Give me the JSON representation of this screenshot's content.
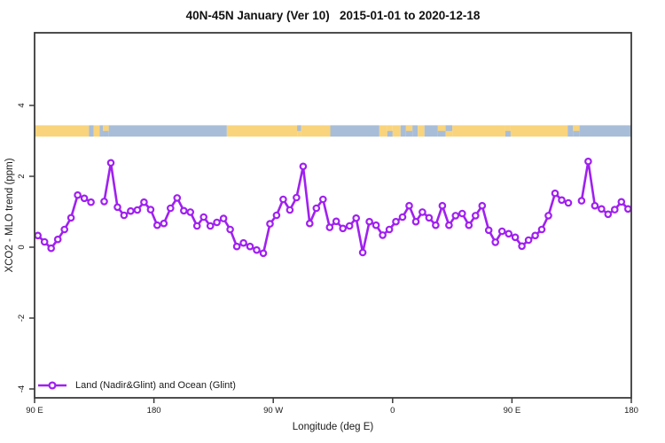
{
  "chart_data": {
    "type": "line",
    "title": "40N-45N January (Ver 10)   2015-01-01 to 2020-12-18",
    "xlabel": "Longitude (deg E)",
    "ylabel": "XCO2 - MLO trend (ppm)",
    "axes": {
      "xlim": [
        90,
        540
      ],
      "ylim": [
        -4.25,
        6.05
      ],
      "grid": false,
      "x_ticks": [
        {
          "value": 90,
          "label": "90 E"
        },
        {
          "value": 180,
          "label": "180"
        },
        {
          "value": 270,
          "label": "90 W"
        },
        {
          "value": 360,
          "label": "0"
        },
        {
          "value": 450,
          "label": "90 E"
        },
        {
          "value": 540,
          "label": "180"
        }
      ],
      "y_ticks": [
        {
          "value": -4,
          "label": "-4"
        },
        {
          "value": -2,
          "label": "-2"
        },
        {
          "value": 0,
          "label": "0"
        },
        {
          "value": 2,
          "label": "2"
        },
        {
          "value": 4,
          "label": "4"
        }
      ]
    },
    "x_start": 92.5,
    "x_step": 5,
    "series": [
      {
        "name": "Land (Nadir&Glint) and Ocean (Glint)",
        "color": "#A020F0",
        "marker": "open-circle",
        "values": [
          0.33,
          0.15,
          -0.03,
          0.22,
          0.5,
          0.83,
          1.47,
          1.38,
          1.27,
          null,
          1.29,
          2.38,
          1.13,
          0.9,
          1.02,
          1.05,
          1.27,
          1.06,
          0.62,
          0.67,
          1.1,
          1.39,
          1.03,
          0.99,
          0.6,
          0.85,
          0.6,
          0.7,
          0.81,
          0.5,
          0.02,
          0.12,
          0.02,
          -0.08,
          -0.17,
          0.66,
          0.9,
          1.35,
          1.05,
          1.4,
          2.28,
          0.67,
          1.1,
          1.35,
          0.56,
          0.73,
          0.53,
          0.6,
          0.82,
          -0.15,
          0.72,
          0.62,
          0.34,
          0.5,
          0.72,
          0.85,
          1.17,
          0.72,
          0.99,
          0.83,
          0.62,
          1.17,
          0.62,
          0.89,
          0.95,
          0.62,
          0.89,
          1.17,
          0.48,
          0.14,
          0.45,
          0.38,
          0.28,
          0.03,
          0.2,
          0.33,
          0.5,
          0.89,
          1.52,
          1.33,
          1.25,
          null,
          1.31,
          2.42,
          1.17,
          1.08,
          0.93,
          1.06,
          1.28,
          1.08
        ]
      }
    ],
    "legend": {
      "position": "bottom-left",
      "entries": [
        {
          "label": "Land (Nadir&Glint) and Ocean (Glint)",
          "marker": "circle-line",
          "color": "#A020F0"
        }
      ]
    },
    "land_ocean_strip": {
      "description": "land/ocean mask band",
      "land_color": "#F9D47C",
      "ocean_color": "#A8BDD8",
      "y_top_value": 3.44,
      "y_bottom_value": 3.12,
      "segments": [
        {
          "from": 90,
          "to": 131,
          "type": "land"
        },
        {
          "from": 131,
          "to": 134.5,
          "type": "ocean"
        },
        {
          "from": 134.5,
          "to": 139,
          "type": "land"
        },
        {
          "from": 139,
          "to": 141.5,
          "type": "ocean"
        },
        {
          "from": 141.5,
          "to": 146,
          "type": "land",
          "half": "top"
        },
        {
          "from": 146,
          "to": 235,
          "type": "ocean"
        },
        {
          "from": 235,
          "to": 288,
          "type": "land"
        },
        {
          "from": 288,
          "to": 291,
          "type": "ocean",
          "half": "top"
        },
        {
          "from": 291,
          "to": 313,
          "type": "land"
        },
        {
          "from": 313,
          "to": 350,
          "type": "ocean"
        },
        {
          "from": 350,
          "to": 356,
          "type": "land"
        },
        {
          "from": 356,
          "to": 360,
          "type": "ocean",
          "half": "bottom"
        },
        {
          "from": 360,
          "to": 366,
          "type": "land"
        },
        {
          "from": 366,
          "to": 370,
          "type": "ocean"
        },
        {
          "from": 370,
          "to": 375,
          "type": "land",
          "half": "top"
        },
        {
          "from": 375,
          "to": 379,
          "type": "ocean"
        },
        {
          "from": 379,
          "to": 384,
          "type": "land"
        },
        {
          "from": 384,
          "to": 394,
          "type": "ocean"
        },
        {
          "from": 394,
          "to": 400,
          "type": "land",
          "half": "top"
        },
        {
          "from": 400,
          "to": 405,
          "type": "ocean",
          "half": "top"
        },
        {
          "from": 405,
          "to": 445,
          "type": "land"
        },
        {
          "from": 445,
          "to": 449,
          "type": "ocean",
          "half": "bottom"
        },
        {
          "from": 449,
          "to": 492,
          "type": "land"
        },
        {
          "from": 492,
          "to": 496,
          "type": "ocean"
        },
        {
          "from": 496,
          "to": 501,
          "type": "land",
          "half": "top"
        },
        {
          "from": 501,
          "to": 540,
          "type": "ocean"
        }
      ]
    },
    "style": {
      "box_color": "#3a3a3a",
      "tick_color": "#3a3a3a",
      "text_color": "#1a1a1a",
      "background": "#ffffff"
    }
  }
}
